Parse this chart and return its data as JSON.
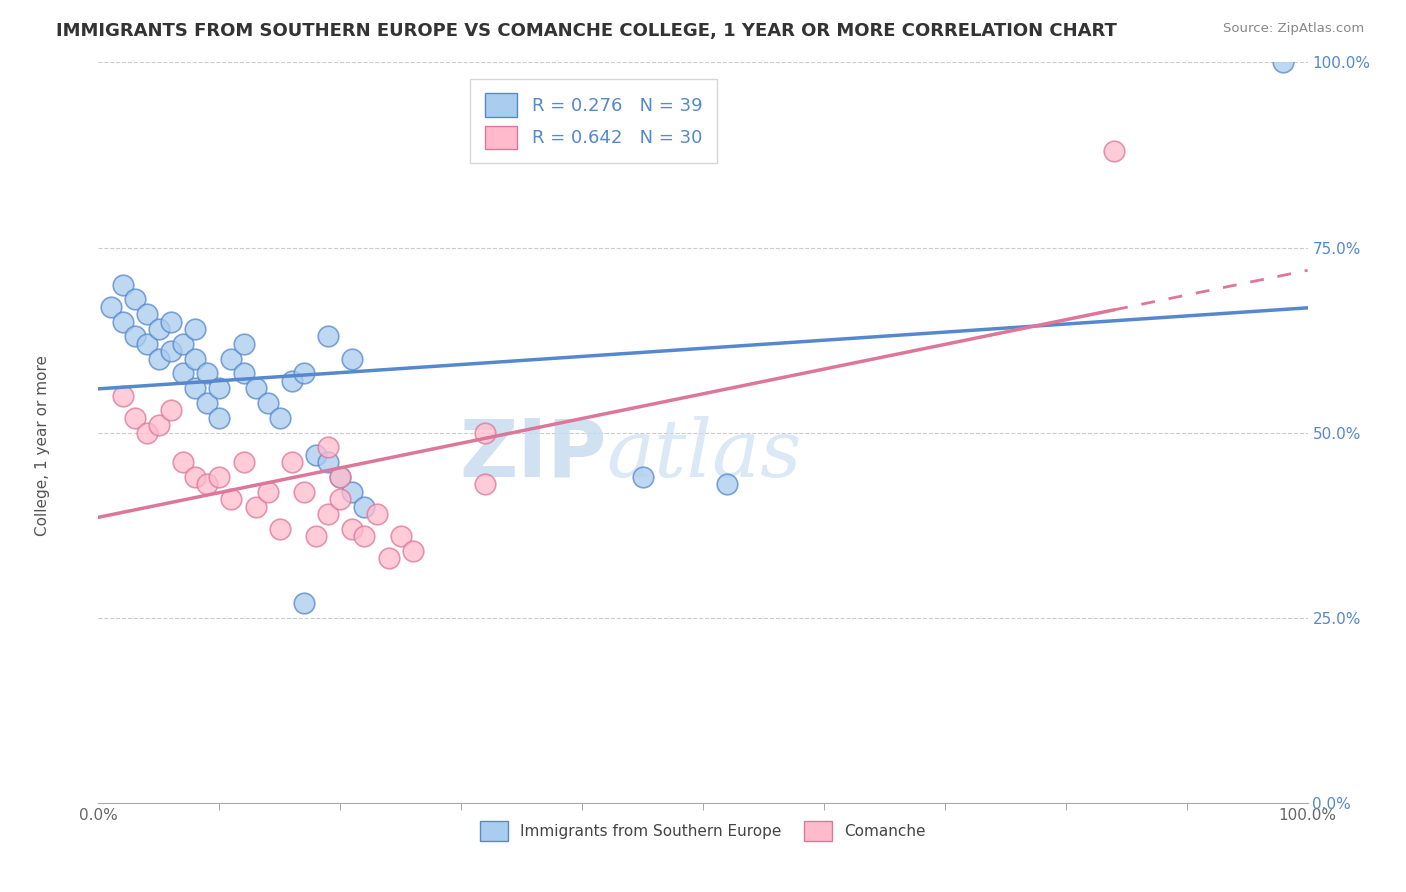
{
  "title": "IMMIGRANTS FROM SOUTHERN EUROPE VS COMANCHE COLLEGE, 1 YEAR OR MORE CORRELATION CHART",
  "source": "Source: ZipAtlas.com",
  "ylabel": "College, 1 year or more",
  "watermark_zip": "ZIP",
  "watermark_atlas": "atlas",
  "xlim": [
    0.0,
    1.0
  ],
  "ylim": [
    0.0,
    1.0
  ],
  "ytick_positions": [
    0.0,
    0.25,
    0.5,
    0.75,
    1.0
  ],
  "ytick_labels": [
    "0.0%",
    "25.0%",
    "50.0%",
    "75.0%",
    "100.0%"
  ],
  "xtick_minor_positions": [
    0.1,
    0.2,
    0.3,
    0.4,
    0.5,
    0.6,
    0.7,
    0.8,
    0.9
  ],
  "blue_color": "#5588CC",
  "blue_fill": "#AACCEE",
  "pink_color": "#DD7799",
  "pink_fill": "#FFBBCC",
  "blue_R": 0.276,
  "blue_N": 39,
  "pink_R": 0.642,
  "pink_N": 30,
  "legend_label_blue": "Immigrants from Southern Europe",
  "legend_label_pink": "Comanche",
  "blue_scatter_x": [
    0.01,
    0.02,
    0.02,
    0.03,
    0.03,
    0.04,
    0.04,
    0.05,
    0.05,
    0.06,
    0.06,
    0.07,
    0.07,
    0.08,
    0.08,
    0.08,
    0.09,
    0.09,
    0.1,
    0.1,
    0.11,
    0.12,
    0.12,
    0.13,
    0.14,
    0.15,
    0.16,
    0.17,
    0.18,
    0.19,
    0.2,
    0.21,
    0.22,
    0.19,
    0.21,
    0.45,
    0.52,
    0.98,
    0.17
  ],
  "blue_scatter_y": [
    0.67,
    0.7,
    0.65,
    0.68,
    0.63,
    0.62,
    0.66,
    0.6,
    0.64,
    0.61,
    0.65,
    0.58,
    0.62,
    0.56,
    0.6,
    0.64,
    0.54,
    0.58,
    0.52,
    0.56,
    0.6,
    0.58,
    0.62,
    0.56,
    0.54,
    0.52,
    0.57,
    0.58,
    0.47,
    0.46,
    0.44,
    0.42,
    0.4,
    0.63,
    0.6,
    0.44,
    0.43,
    1.0,
    0.27
  ],
  "pink_scatter_x": [
    0.02,
    0.03,
    0.04,
    0.05,
    0.06,
    0.07,
    0.08,
    0.09,
    0.1,
    0.11,
    0.12,
    0.13,
    0.14,
    0.15,
    0.16,
    0.17,
    0.18,
    0.19,
    0.2,
    0.21,
    0.22,
    0.23,
    0.24,
    0.25,
    0.26,
    0.19,
    0.2,
    0.32,
    0.32,
    0.84
  ],
  "pink_scatter_y": [
    0.55,
    0.52,
    0.5,
    0.51,
    0.53,
    0.46,
    0.44,
    0.43,
    0.44,
    0.41,
    0.46,
    0.4,
    0.42,
    0.37,
    0.46,
    0.42,
    0.36,
    0.39,
    0.41,
    0.37,
    0.36,
    0.39,
    0.33,
    0.36,
    0.34,
    0.48,
    0.44,
    0.5,
    0.43,
    0.88
  ],
  "grid_color": "#CCCCCC",
  "background_color": "#FFFFFF",
  "title_fontsize": 13,
  "axis_label_fontsize": 11,
  "tick_fontsize": 11,
  "legend_fontsize": 13
}
